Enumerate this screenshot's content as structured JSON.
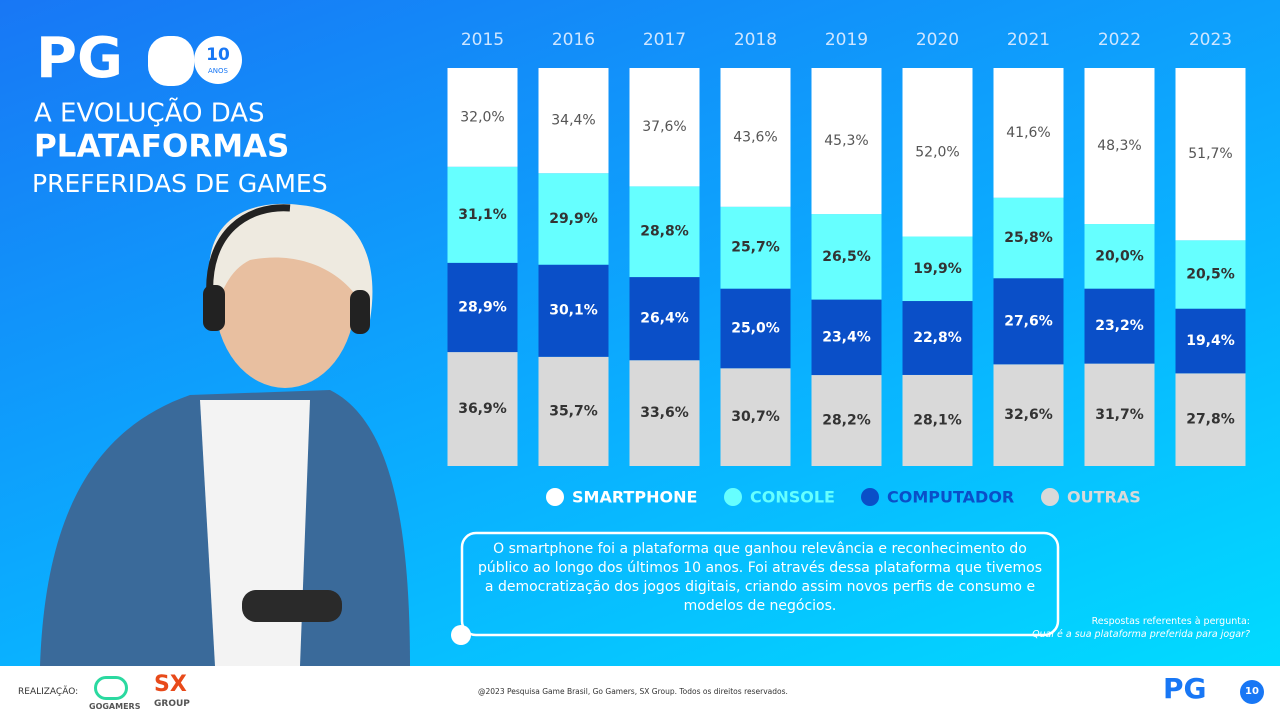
{
  "header": {
    "logo": "PG",
    "logo_badge": "10",
    "logo_badge_sub": "ANOS",
    "title_line1": "A EVOLUÇÃO DAS",
    "title_line2": "PLATAFORMAS",
    "title_line3": "PREFERIDAS DE GAMES"
  },
  "chart_data": {
    "type": "bar",
    "stacked": true,
    "categories": [
      "2015",
      "2016",
      "2017",
      "2018",
      "2019",
      "2020",
      "2021",
      "2022",
      "2023"
    ],
    "series": [
      {
        "name": "SMARTPHONE",
        "color": "#ffffff",
        "label_color": "#555555",
        "values": [
          32.0,
          34.4,
          37.6,
          43.6,
          45.3,
          52.0,
          41.6,
          48.3,
          51.7
        ],
        "value_labels": [
          "32,0%",
          "34,4%",
          "37,6%",
          "43,6%",
          "45,3%",
          "52,0%",
          "41,6%",
          "48,3%",
          "51,7%"
        ]
      },
      {
        "name": "CONSOLE",
        "color": "#66ffff",
        "label_color": "#333333",
        "values": [
          31.1,
          29.9,
          28.8,
          25.7,
          26.5,
          19.9,
          25.8,
          20.0,
          20.5
        ],
        "value_labels": [
          "31,1%",
          "29,9%",
          "28,8%",
          "25,7%",
          "26,5%",
          "19,9%",
          "25,8%",
          "20,0%",
          "20,5%"
        ]
      },
      {
        "name": "COMPUTADOR",
        "color": "#0a4fc8",
        "label_color": "#ffffff",
        "values": [
          28.9,
          30.1,
          26.4,
          25.0,
          23.4,
          22.8,
          27.6,
          23.2,
          19.4
        ],
        "value_labels": [
          "28,9%",
          "30,1%",
          "26,4%",
          "25,0%",
          "23,4%",
          "22,8%",
          "27,6%",
          "23,2%",
          "19,4%"
        ]
      },
      {
        "name": "OUTRAS",
        "color": "#d9d9d9",
        "label_color": "#333333",
        "values": [
          36.9,
          35.7,
          33.6,
          30.7,
          28.2,
          28.1,
          32.6,
          31.7,
          27.8
        ],
        "value_labels": [
          "36,9%",
          "35,7%",
          "33,6%",
          "30,7%",
          "28,2%",
          "28,1%",
          "32,6%",
          "31,7%",
          "27,8%"
        ]
      }
    ]
  },
  "note": {
    "text": "O smartphone foi a plataforma que ganhou relevância e reconhecimento do público ao longo dos últimos 10 anos. Foi através dessa plataforma que tivemos a democratização dos jogos digitais, criando assim novos perfis de consumo e modelos de negócios."
  },
  "question": {
    "intro": "Respostas referentes à pergunta:",
    "text": "Qual é a sua plataforma preferida para jogar?"
  },
  "footer": {
    "realizacao": "REALIZAÇÃO:",
    "gogamers": "GOGAMERS",
    "sx": "SX",
    "group": "GROUP",
    "copyright": "@2023 Pesquisa Game Brasil, Go Gamers, SX Group. Todos os direitos reservados.",
    "logo": "PG",
    "logo_badge": "10"
  }
}
